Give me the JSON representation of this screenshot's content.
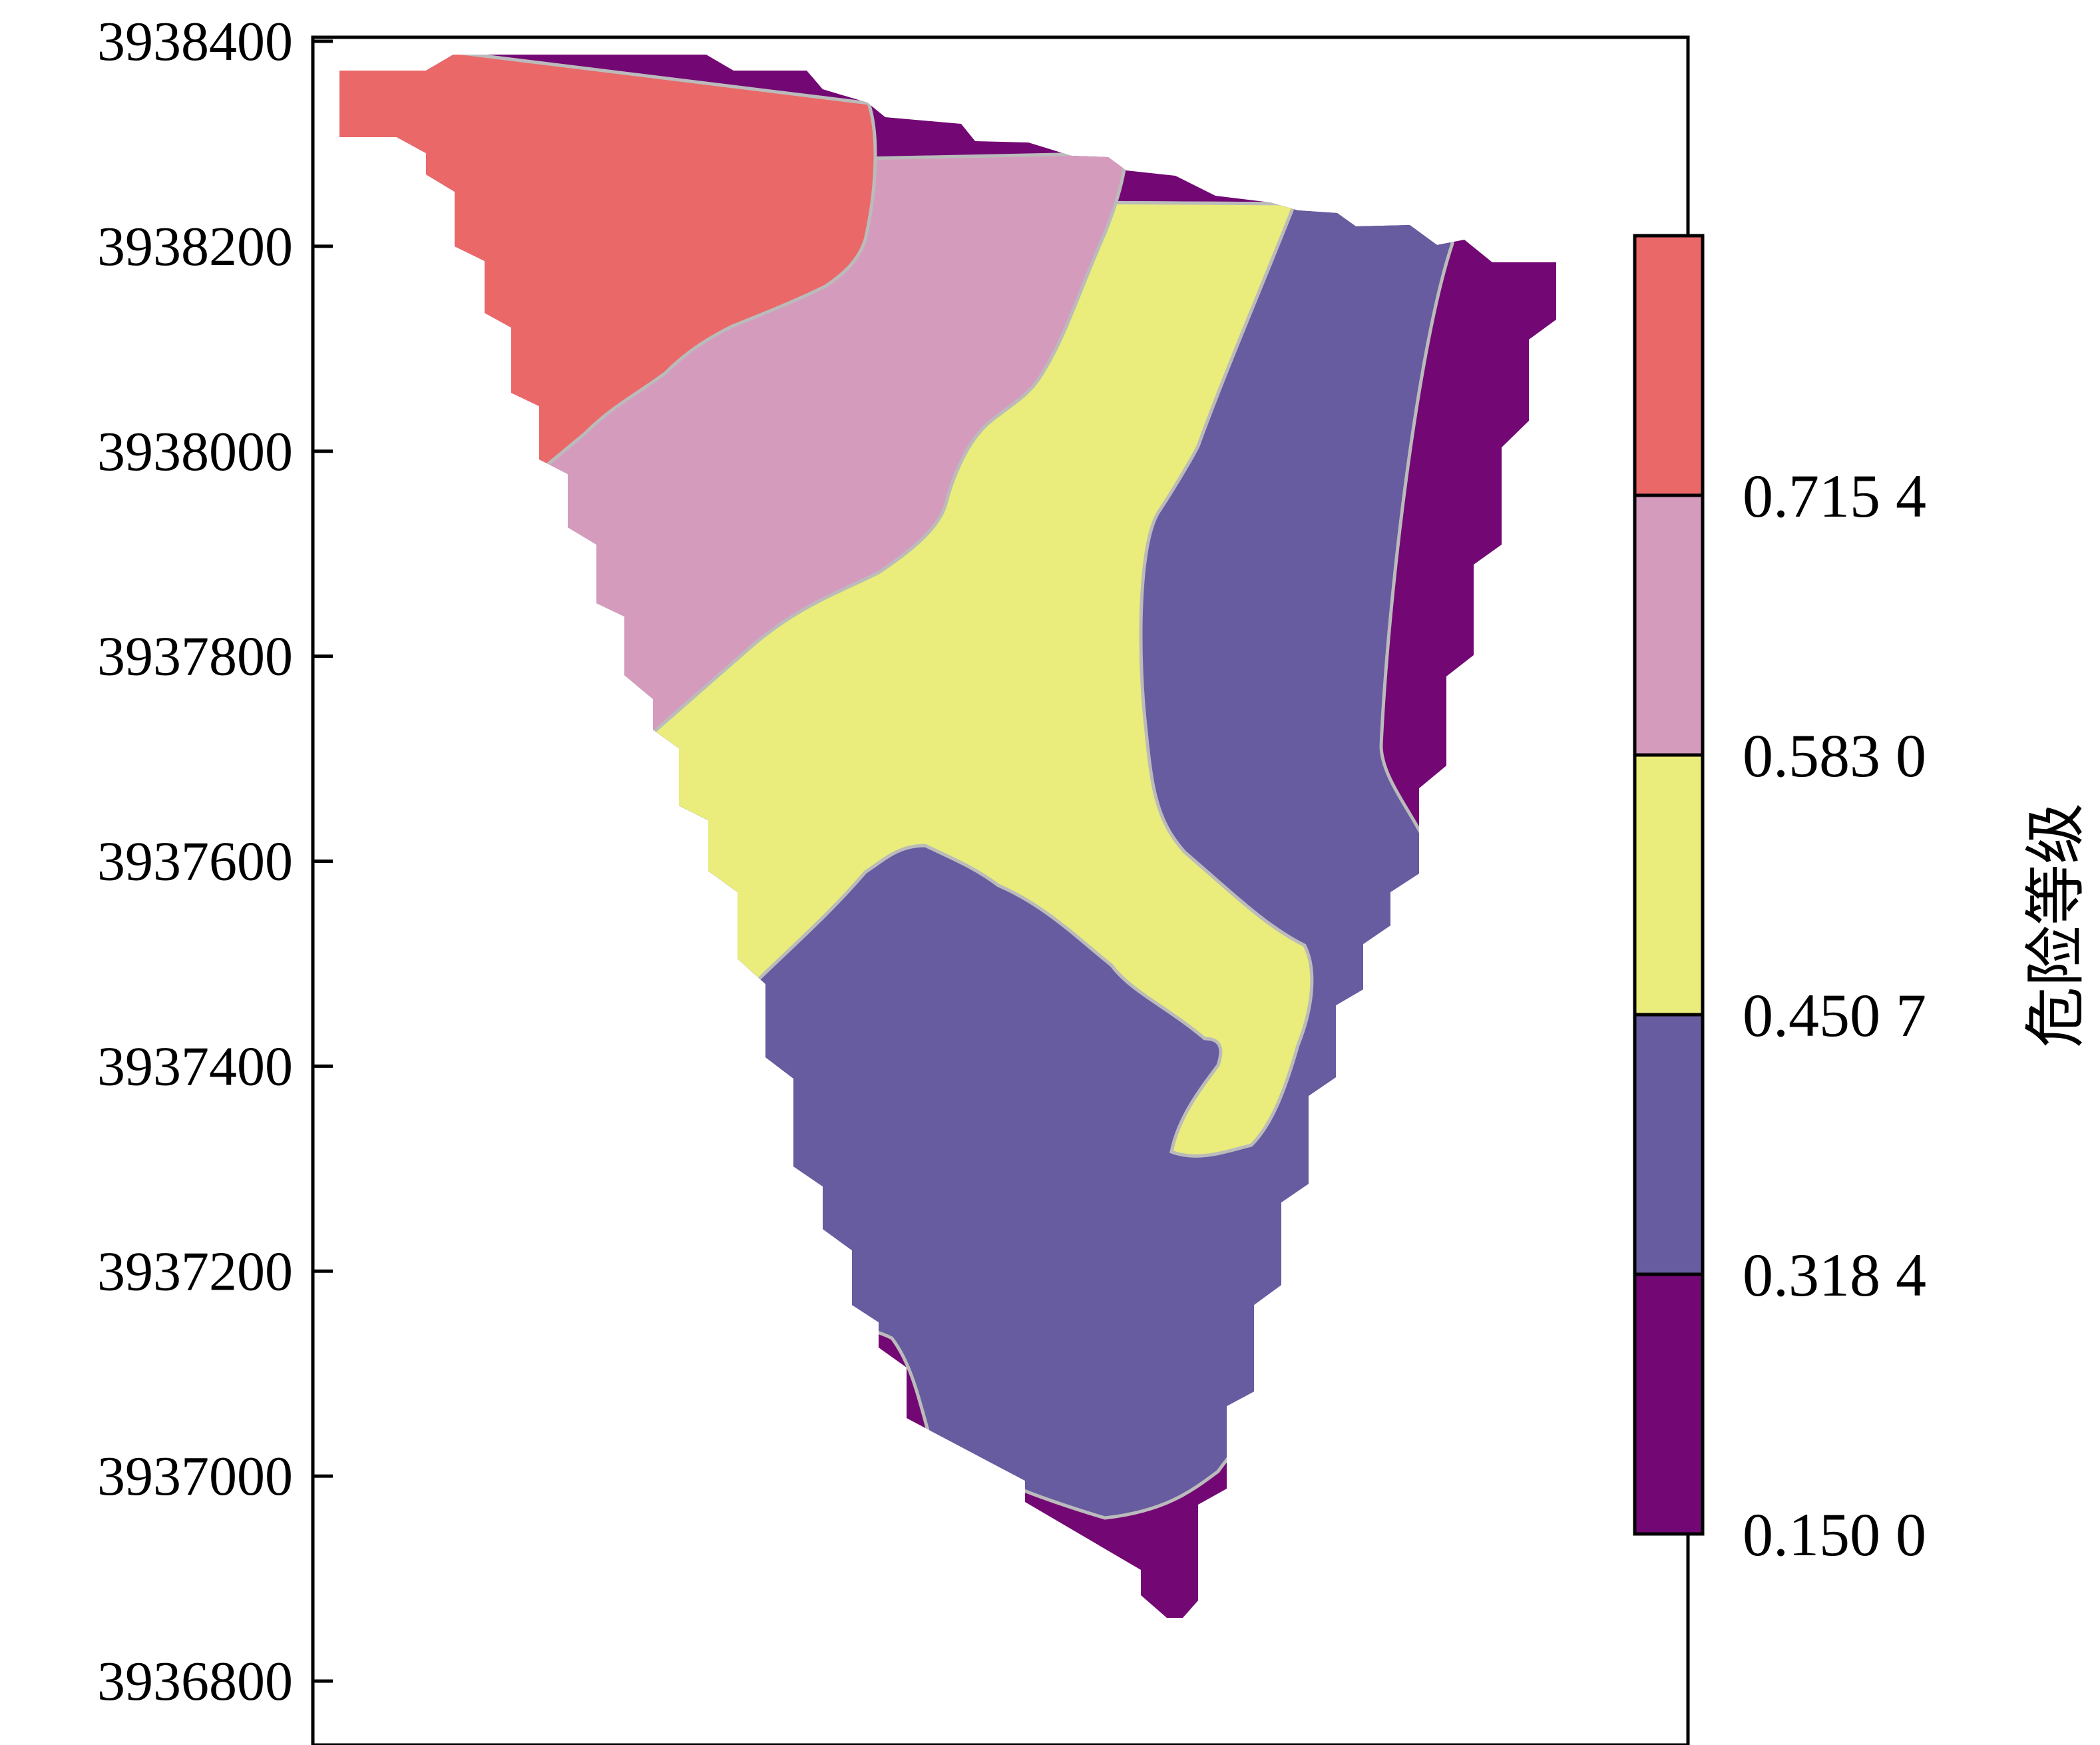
{
  "chart_data": {
    "type": "heatmap",
    "title": "",
    "xlabel": "",
    "ylabel": "",
    "x_tick_labels": [],
    "y_ticks": [
      3938400,
      3938200,
      3938000,
      3937800,
      3937600,
      3937400,
      3937200,
      3937000,
      3936800
    ],
    "y_tick_labels": [
      "3938400",
      "3938200",
      "3938000",
      "3937800",
      "3937600",
      "3937400",
      "3937200",
      "3937000",
      "3936800"
    ],
    "ylim": [
      3936760,
      3938430
    ],
    "colorbar": {
      "title": "危险等级",
      "boundaries": [
        0.15,
        0.3184,
        0.4507,
        0.583,
        0.7154
      ],
      "tick_labels": [
        "0.150 0",
        "0.318 4",
        "0.450 7",
        "0.583 0",
        "0.715 4"
      ],
      "classes": [
        {
          "range": [
            0.15,
            0.3184
          ],
          "color": "#730874"
        },
        {
          "range": [
            0.3184,
            0.4507
          ],
          "color": "#665C9F"
        },
        {
          "range": [
            0.4507,
            0.583
          ],
          "color": "#EAEC7B"
        },
        {
          "range": [
            0.583,
            0.7154
          ],
          "color": "#D59BBD"
        },
        {
          "range": [
            0.7154,
            0.85
          ],
          "color": "#EA6868"
        }
      ]
    },
    "grid": false,
    "legend": "right"
  }
}
